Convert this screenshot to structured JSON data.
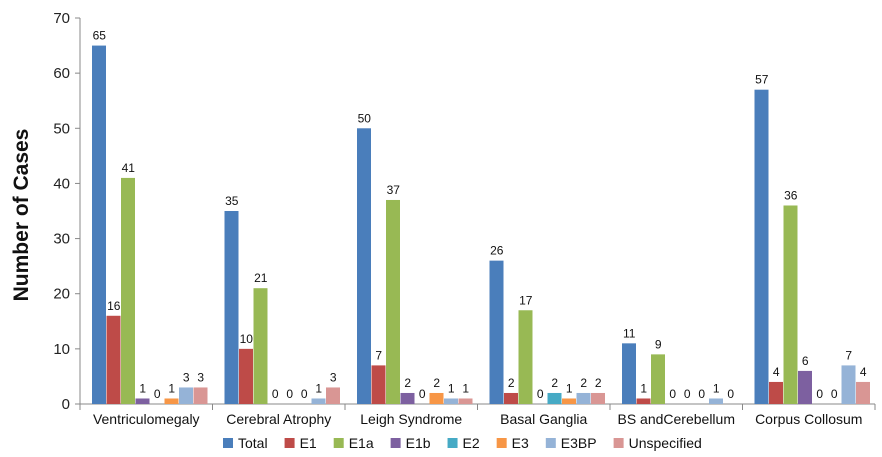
{
  "chart_data": {
    "type": "bar",
    "ylabel": "Number of Cases",
    "xlabel": "",
    "title": "",
    "ylim": [
      0,
      70
    ],
    "yticks": [
      0,
      10,
      20,
      30,
      40,
      50,
      60,
      70
    ],
    "grid": false,
    "legend_position": "bottom",
    "categories": [
      "Ventriculomegaly",
      "Cerebral Atrophy",
      "Leigh Syndrome",
      "Basal Ganglia",
      "BS andCerebellum",
      "Corpus Collosum"
    ],
    "series": [
      {
        "name": "Total",
        "color": "#4a7ebb",
        "values": [
          65,
          35,
          50,
          26,
          11,
          57
        ],
        "labels": [
          "65",
          "35",
          "50",
          "26",
          "11",
          "57"
        ]
      },
      {
        "name": "E1",
        "color": "#be4b48",
        "values": [
          16,
          10,
          7,
          2,
          1,
          4
        ],
        "labels": [
          "16",
          "10",
          "7",
          "2",
          "1",
          "4"
        ]
      },
      {
        "name": "E1a",
        "color": "#98b954",
        "values": [
          41,
          21,
          37,
          17,
          9,
          36
        ],
        "labels": [
          "41",
          "21",
          "37",
          "17",
          "9",
          "36"
        ]
      },
      {
        "name": "E1b",
        "color": "#7d60a0",
        "values": [
          1,
          0,
          2,
          0,
          0,
          6
        ],
        "labels": [
          "1",
          "0",
          "2",
          "0",
          "0",
          "6"
        ]
      },
      {
        "name": "E2",
        "color": "#46aac5",
        "values": [
          0,
          0,
          0,
          2,
          0,
          0
        ],
        "labels": [
          "0",
          "0",
          "0",
          "2",
          "0",
          "0"
        ]
      },
      {
        "name": "E3",
        "color": "#f79646",
        "values": [
          1,
          0,
          2,
          1,
          0,
          0
        ],
        "labels": [
          "1",
          "0",
          "2",
          "1",
          "0",
          "0"
        ]
      },
      {
        "name": "E3BP",
        "color": "#95b3d7",
        "values": [
          3,
          1,
          1,
          2,
          1,
          7
        ],
        "labels": [
          "3",
          "1",
          "1",
          "2",
          "1",
          "7"
        ]
      },
      {
        "name": "Unspecified",
        "color": "#d99694",
        "values": [
          3,
          3,
          1,
          2,
          0,
          4
        ],
        "labels": [
          "3",
          "3",
          "1",
          "2",
          "0",
          "4"
        ]
      }
    ]
  }
}
